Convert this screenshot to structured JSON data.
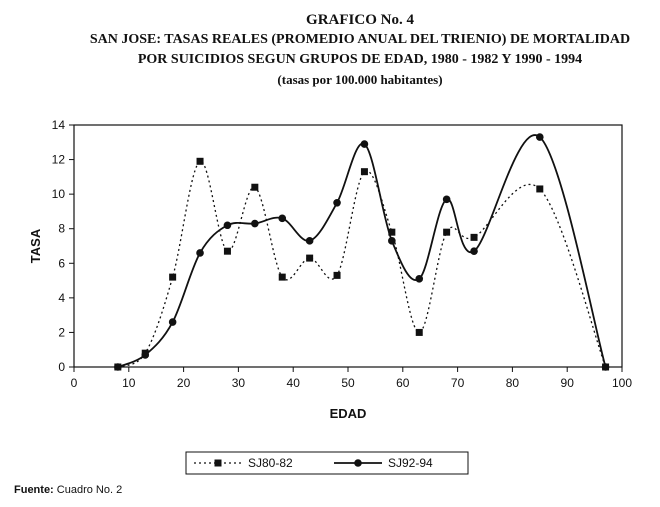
{
  "title": {
    "line1": "GRAFICO No. 4",
    "line2": "SAN JOSE: TASAS REALES (PROMEDIO ANUAL DEL TRIENIO) DE MORTALIDAD",
    "line3": "POR SUICIDIOS SEGUN GRUPOS DE EDAD, 1980 - 1982 Y 1990 - 1994",
    "line4": "(tasas por 100.000 habitantes)"
  },
  "source": {
    "label": "Fuente:",
    "text": "Cuadro No. 2"
  },
  "chart_data": {
    "type": "line",
    "xlabel": "EDAD",
    "ylabel": "TASA",
    "xlim": [
      0,
      100
    ],
    "ylim": [
      0,
      14
    ],
    "xticks": [
      0,
      10,
      20,
      30,
      40,
      50,
      60,
      70,
      80,
      90,
      100
    ],
    "yticks": [
      0,
      2,
      4,
      6,
      8,
      10,
      12,
      14
    ],
    "grid": false,
    "legend_position": "bottom",
    "series": [
      {
        "name": "SJ80-82",
        "style": "dotted",
        "marker": "square",
        "color": "#111111",
        "x": [
          8,
          13,
          18,
          23,
          28,
          33,
          38,
          43,
          48,
          53,
          58,
          63,
          68,
          73,
          85,
          97
        ],
        "y": [
          0,
          0.8,
          5.2,
          11.9,
          6.7,
          10.4,
          5.2,
          6.3,
          5.3,
          11.3,
          7.8,
          2.0,
          7.8,
          7.5,
          10.3,
          0
        ]
      },
      {
        "name": "SJ92-94",
        "style": "solid",
        "marker": "circle",
        "color": "#111111",
        "x": [
          8,
          13,
          18,
          23,
          28,
          33,
          38,
          43,
          48,
          53,
          58,
          63,
          68,
          73,
          85,
          97
        ],
        "y": [
          0,
          0.7,
          2.6,
          6.6,
          8.2,
          8.3,
          8.6,
          7.3,
          9.5,
          12.9,
          7.3,
          5.1,
          9.7,
          6.7,
          13.3,
          0
        ]
      }
    ]
  }
}
